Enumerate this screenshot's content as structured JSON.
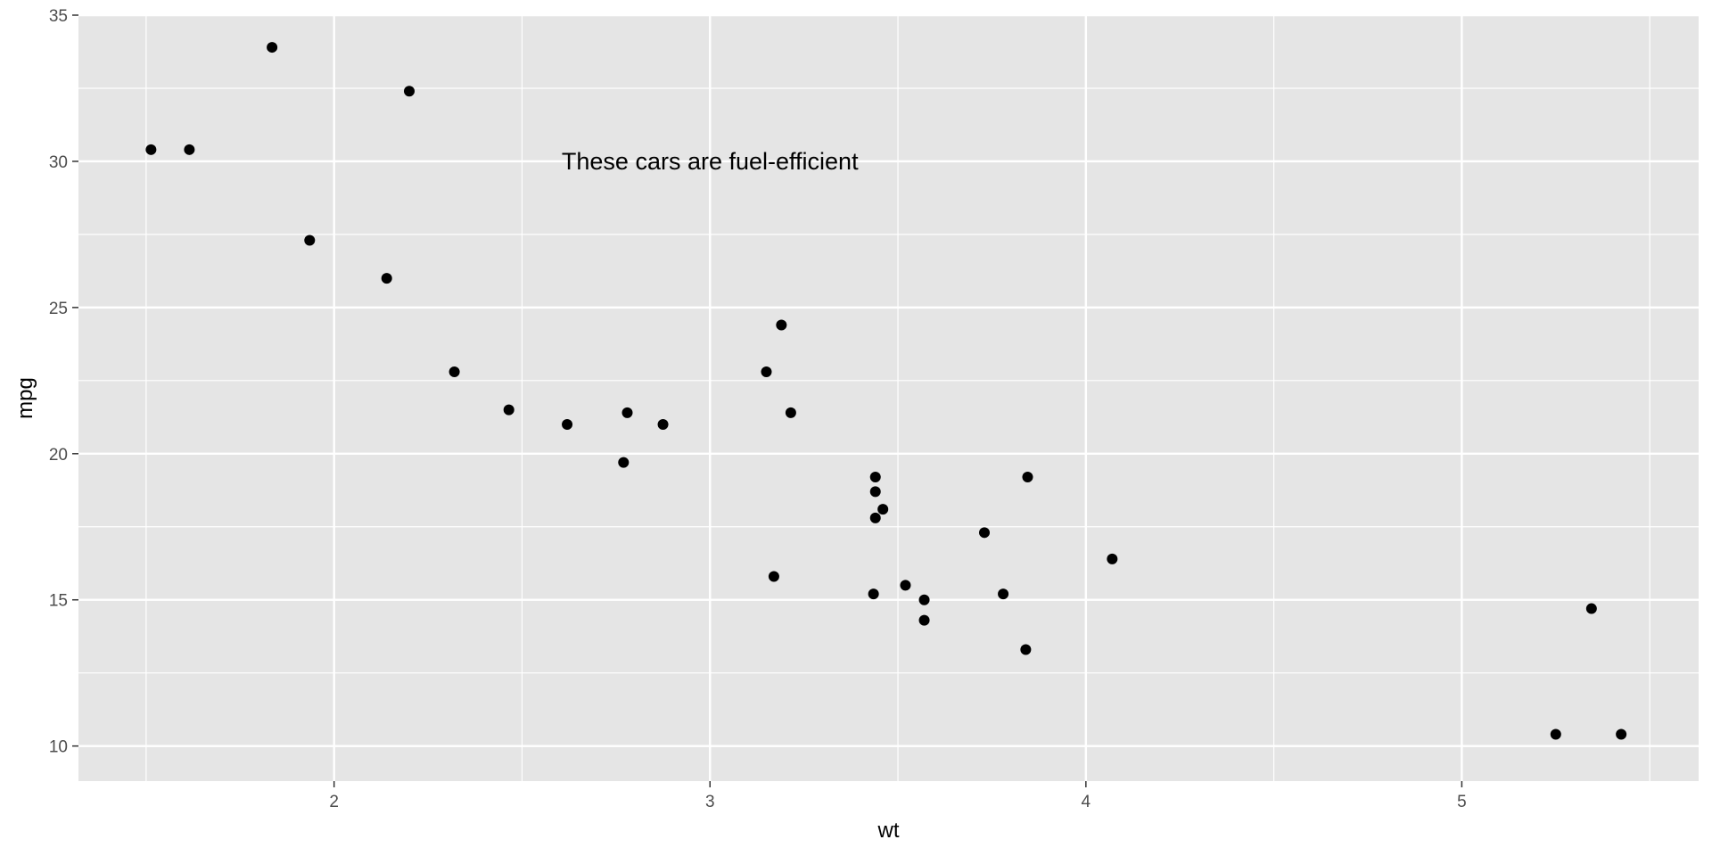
{
  "chart_data": {
    "type": "scatter",
    "xlabel": "wt",
    "ylabel": "mpg",
    "xlim": [
      1.32,
      5.63
    ],
    "ylim": [
      8.8,
      35
    ],
    "x_ticks": [
      2,
      3,
      4,
      5
    ],
    "y_ticks": [
      10,
      15,
      20,
      25,
      30,
      35
    ],
    "x_tick_labels": [
      "2",
      "3",
      "4",
      "5"
    ],
    "y_tick_labels": [
      "10",
      "15",
      "20",
      "25",
      "30",
      "35"
    ],
    "grid": true,
    "colors": {
      "panel": "#e5e5e5",
      "grid": "#ffffff",
      "point": "#000000"
    },
    "annotation": {
      "text": "These cars are fuel-efficient",
      "x": 3.0,
      "y": 30
    },
    "points": [
      {
        "x": 2.62,
        "y": 21.0
      },
      {
        "x": 2.875,
        "y": 21.0
      },
      {
        "x": 2.32,
        "y": 22.8
      },
      {
        "x": 3.215,
        "y": 21.4
      },
      {
        "x": 3.44,
        "y": 18.7
      },
      {
        "x": 3.46,
        "y": 18.1
      },
      {
        "x": 3.57,
        "y": 14.3
      },
      {
        "x": 3.19,
        "y": 24.4
      },
      {
        "x": 3.15,
        "y": 22.8
      },
      {
        "x": 3.44,
        "y": 19.2
      },
      {
        "x": 3.44,
        "y": 17.8
      },
      {
        "x": 4.07,
        "y": 16.4
      },
      {
        "x": 3.73,
        "y": 17.3
      },
      {
        "x": 3.78,
        "y": 15.2
      },
      {
        "x": 5.25,
        "y": 10.4
      },
      {
        "x": 5.424,
        "y": 10.4
      },
      {
        "x": 5.345,
        "y": 14.7
      },
      {
        "x": 2.2,
        "y": 32.4
      },
      {
        "x": 1.615,
        "y": 30.4
      },
      {
        "x": 1.835,
        "y": 33.9
      },
      {
        "x": 2.465,
        "y": 21.5
      },
      {
        "x": 3.52,
        "y": 15.5
      },
      {
        "x": 3.435,
        "y": 15.2
      },
      {
        "x": 3.84,
        "y": 13.3
      },
      {
        "x": 3.845,
        "y": 19.2
      },
      {
        "x": 1.935,
        "y": 27.3
      },
      {
        "x": 2.14,
        "y": 26.0
      },
      {
        "x": 1.513,
        "y": 30.4
      },
      {
        "x": 3.17,
        "y": 15.8
      },
      {
        "x": 2.77,
        "y": 19.7
      },
      {
        "x": 3.57,
        "y": 15.0
      },
      {
        "x": 2.78,
        "y": 21.4
      }
    ]
  }
}
